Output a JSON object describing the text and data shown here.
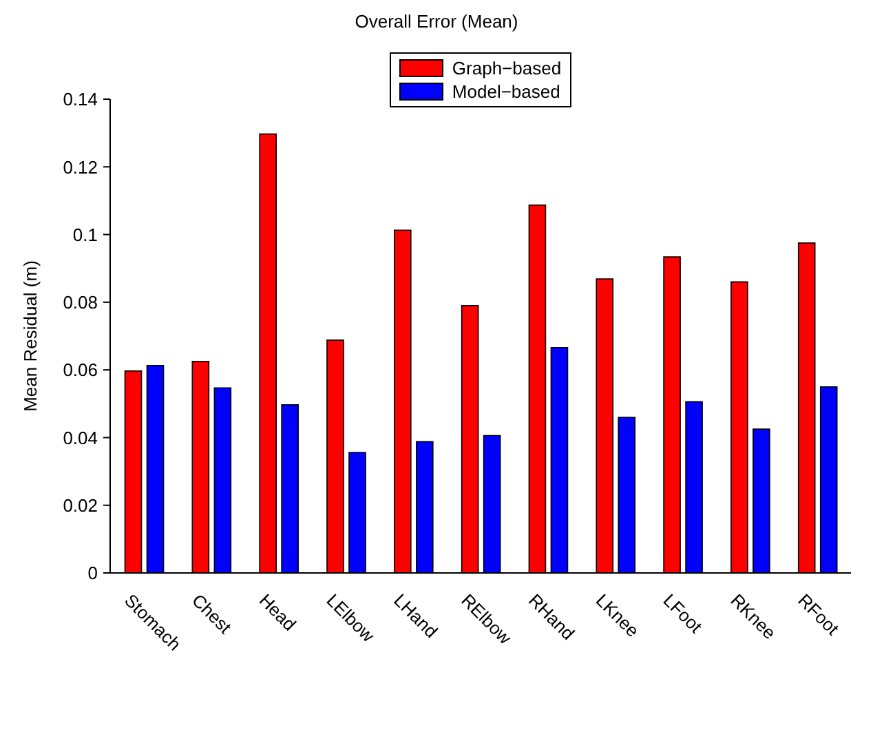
{
  "chart_data": {
    "type": "bar",
    "title": "Overall Error (Mean)",
    "ylabel": "Mean Residual (m)",
    "categories": [
      "Stomach",
      "Chest",
      "Head",
      "LElbow",
      "LHand",
      "RElbow",
      "RHand",
      "LKnee",
      "LFoot",
      "RKnee",
      "RFoot"
    ],
    "series": [
      {
        "name": "Graph−based",
        "color": "#ff0000",
        "values": [
          0.0597,
          0.0625,
          0.1297,
          0.0688,
          0.1013,
          0.079,
          0.1087,
          0.0869,
          0.0934,
          0.086,
          0.0975
        ]
      },
      {
        "name": "Model−based",
        "color": "#0000ff",
        "values": [
          0.0613,
          0.0547,
          0.0497,
          0.0356,
          0.0388,
          0.0406,
          0.0666,
          0.046,
          0.0506,
          0.0425,
          0.055
        ]
      }
    ],
    "ylim": [
      0,
      0.14
    ],
    "yticks": [
      0,
      0.02,
      0.04,
      0.06,
      0.08,
      0.1,
      0.12,
      0.14
    ],
    "legend": "top",
    "grid": false
  }
}
